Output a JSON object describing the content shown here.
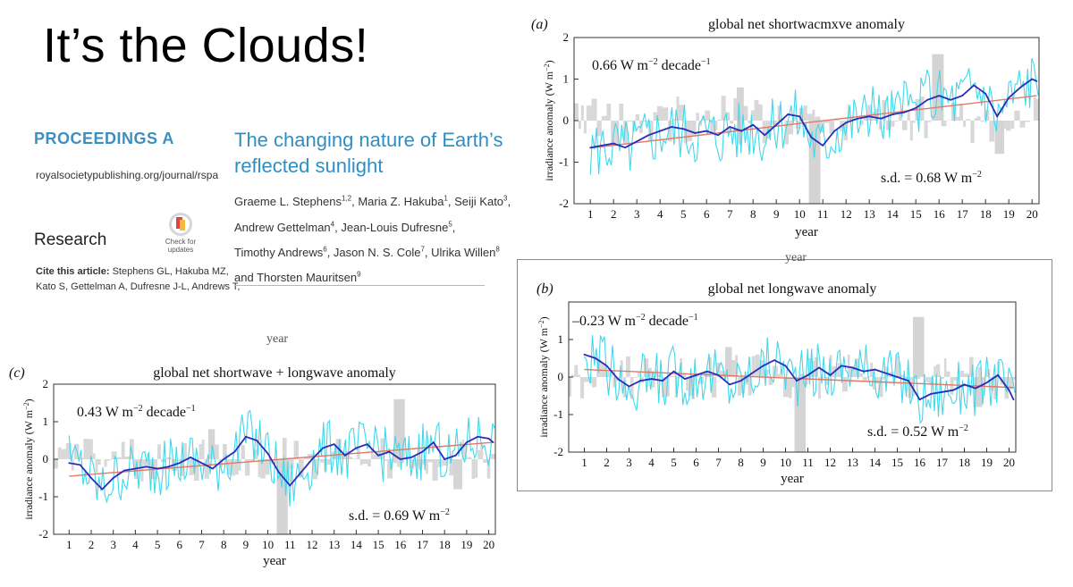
{
  "slide": {
    "title": "It’s the Clouds!"
  },
  "article": {
    "journal": "PROCEEDINGS A",
    "url": "royalsocietypublishing.org/journal/rspa",
    "section": "Research",
    "check_label_1": "Check for",
    "check_label_2": "updates",
    "cite_label": "Cite this article:",
    "cite_line1": "Stephens GL, Hakuba MZ,",
    "cite_line2": "Kato S, Gettelman A, Dufresne J-L, Andrews T,",
    "title_line1": "The changing nature of Earth’s",
    "title_line2": "reflected sunlight",
    "authors": [
      {
        "name": "Graeme L. Stephens",
        "sup": "1,2",
        "sep": ", "
      },
      {
        "name": "Maria Z. Hakuba",
        "sup": "1",
        "sep": ", "
      },
      {
        "name": "Seiji Kato",
        "sup": "3",
        "sep": ","
      },
      {
        "name": "Andrew Gettelman",
        "sup": "4",
        "sep": ", "
      },
      {
        "name": "Jean-Louis Dufresne",
        "sup": "5",
        "sep": ","
      },
      {
        "name": "Timothy Andrews",
        "sup": "6",
        "sep": ", "
      },
      {
        "name": "Jason N. S. Cole",
        "sup": "7",
        "sep": ", "
      },
      {
        "name": "Ulrika Willen",
        "sup": "8",
        "sep": ""
      },
      {
        "name": "and Thorsten Mauritsen",
        "sup": "9",
        "sep": ""
      }
    ]
  },
  "stray_text": {
    "year_a": "year",
    "year_c": "year"
  },
  "chart_data": [
    {
      "id": "a",
      "type": "line",
      "panel": "(a)",
      "title": "global net shortwacmxve anomaly",
      "xlabel": "year",
      "ylabel": "irradiance anomaly (W m",
      "ylabel_sup": "−2",
      "xlim": [
        0.3,
        20.3
      ],
      "ylim": [
        -2,
        2
      ],
      "xticks": [
        1,
        2,
        3,
        4,
        5,
        6,
        7,
        8,
        9,
        10,
        11,
        12,
        13,
        14,
        15,
        16,
        17,
        18,
        19,
        20
      ],
      "yticks": [
        -2,
        -1,
        0,
        1,
        2
      ],
      "trend_label": "0.66 W m",
      "trend_sup": "−2",
      "trend_unit": " decade",
      "trend_unit_sup": "−1",
      "sd_label": "s.d. = 0.68 W m",
      "sd_sup": "−2",
      "trend_line": {
        "x": [
          1,
          20.2
        ],
        "y": [
          -0.66,
          0.6
        ]
      },
      "series": [
        {
          "name": "",
          "color": "#2b2bb8",
          "x": [
            1,
            1.5,
            2,
            2.5,
            3,
            3.5,
            4,
            4.5,
            5,
            5.5,
            6,
            6.5,
            7,
            7.5,
            8,
            8.5,
            9,
            9.5,
            10,
            10.5,
            11,
            11.5,
            12,
            12.5,
            13,
            13.5,
            14,
            14.5,
            15,
            15.5,
            16,
            16.5,
            17,
            17.5,
            18,
            18.5,
            19,
            19.5,
            20,
            20.2
          ],
          "y": [
            -0.65,
            -0.6,
            -0.55,
            -0.65,
            -0.5,
            -0.35,
            -0.25,
            -0.15,
            -0.2,
            -0.3,
            -0.25,
            -0.35,
            -0.15,
            -0.25,
            -0.1,
            -0.35,
            -0.1,
            0.15,
            0.1,
            -0.4,
            -0.6,
            -0.25,
            -0.05,
            0.05,
            0.1,
            0.05,
            0.15,
            0.2,
            0.3,
            0.5,
            0.6,
            0.5,
            0.6,
            0.85,
            0.65,
            0.1,
            0.55,
            0.8,
            1.0,
            0.95
          ]
        }
      ]
    },
    {
      "id": "b",
      "type": "line",
      "panel": "(b)",
      "title": "global net longwave anomaly",
      "xlabel": "year",
      "ylabel": "irradiance anomaly (W m",
      "ylabel_sup": "−2",
      "xlim": [
        0.3,
        20.3
      ],
      "ylim": [
        -2,
        2
      ],
      "xticks": [
        1,
        2,
        3,
        4,
        5,
        6,
        7,
        8,
        9,
        10,
        11,
        12,
        13,
        14,
        15,
        16,
        17,
        18,
        19,
        20
      ],
      "yticks": [
        -2,
        -1,
        0,
        1
      ],
      "trend_label": "–0.23 W m",
      "trend_sup": "−2",
      "trend_unit": " decade",
      "trend_unit_sup": "−1",
      "sd_label": "s.d. = 0.52 W m",
      "sd_sup": "−2",
      "trend_line": {
        "x": [
          1,
          20.2
        ],
        "y": [
          0.2,
          -0.28
        ]
      },
      "series": [
        {
          "name": "",
          "color": "#2b2bb8",
          "x": [
            1,
            1.5,
            2,
            2.5,
            3,
            3.5,
            4,
            4.5,
            5,
            5.5,
            6,
            6.5,
            7,
            7.5,
            8,
            8.5,
            9,
            9.5,
            10,
            10.5,
            11,
            11.5,
            12,
            12.5,
            13,
            13.5,
            14,
            14.5,
            15,
            15.5,
            16,
            16.5,
            17,
            17.5,
            18,
            18.5,
            19,
            19.5,
            20,
            20.2
          ],
          "y": [
            0.6,
            0.5,
            0.3,
            -0.05,
            -0.25,
            -0.1,
            -0.05,
            -0.1,
            0.15,
            -0.05,
            0.05,
            0.15,
            0.05,
            -0.2,
            -0.1,
            0.1,
            0.3,
            0.45,
            0.3,
            -0.1,
            0.05,
            0.25,
            0.05,
            0.3,
            0.25,
            0.15,
            0.2,
            0.1,
            0.0,
            -0.1,
            -0.6,
            -0.45,
            -0.4,
            -0.35,
            -0.2,
            -0.3,
            -0.15,
            0.05,
            -0.35,
            -0.6
          ]
        }
      ]
    },
    {
      "id": "c",
      "type": "line",
      "panel": "(c)",
      "title": "global net shortwave + longwave anomaly",
      "xlabel": "year",
      "ylabel": "irradiance anomaly (W m",
      "ylabel_sup": "−2",
      "xlim": [
        0.3,
        20.3
      ],
      "ylim": [
        -2,
        2
      ],
      "xticks": [
        1,
        2,
        3,
        4,
        5,
        6,
        7,
        8,
        9,
        10,
        11,
        12,
        13,
        14,
        15,
        16,
        17,
        18,
        19,
        20
      ],
      "yticks": [
        -2,
        -1,
        0,
        1,
        2
      ],
      "trend_label": "0.43 W m",
      "trend_sup": "−2",
      "trend_unit": " decade",
      "trend_unit_sup": "−1",
      "sd_label": "s.d. = 0.69 W m",
      "sd_sup": "−2",
      "trend_line": {
        "x": [
          1,
          20.2
        ],
        "y": [
          -0.45,
          0.45
        ]
      },
      "series": [
        {
          "name": "",
          "color": "#2b2bb8",
          "x": [
            1,
            1.5,
            2,
            2.5,
            3,
            3.5,
            4,
            4.5,
            5,
            5.5,
            6,
            6.5,
            7,
            7.5,
            8,
            8.5,
            9,
            9.5,
            10,
            10.5,
            11,
            11.5,
            12,
            12.5,
            13,
            13.5,
            14,
            14.5,
            15,
            15.5,
            16,
            16.5,
            17,
            17.5,
            18,
            18.5,
            19,
            19.5,
            20,
            20.2
          ],
          "y": [
            -0.1,
            -0.15,
            -0.5,
            -0.8,
            -0.5,
            -0.3,
            -0.25,
            -0.2,
            -0.25,
            -0.2,
            -0.1,
            0.05,
            -0.1,
            -0.25,
            0.0,
            0.2,
            0.6,
            0.5,
            0.15,
            -0.35,
            -0.7,
            -0.35,
            0.0,
            0.3,
            0.4,
            0.1,
            0.3,
            0.4,
            0.1,
            0.2,
            0.0,
            0.05,
            0.2,
            0.45,
            0.0,
            0.1,
            0.45,
            0.6,
            0.55,
            0.45
          ]
        }
      ]
    }
  ]
}
